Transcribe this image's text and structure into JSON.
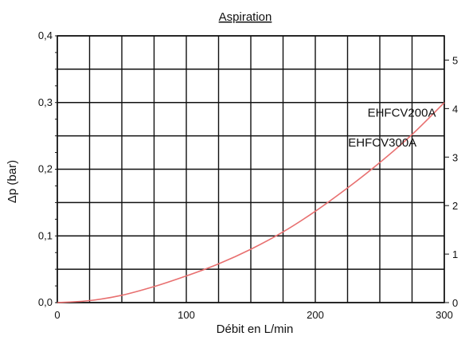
{
  "chart_data": {
    "type": "line",
    "title": "Aspiration",
    "xlabel": "Débit en L/min",
    "ylabel": "Δp (bar)",
    "xlim": [
      0,
      300
    ],
    "ylim": [
      0,
      0.4
    ],
    "y2lim": [
      0,
      5.5
    ],
    "grid": true,
    "x_ticks": [
      0,
      25,
      50,
      75,
      100,
      125,
      150,
      175,
      200,
      225,
      250,
      275,
      300
    ],
    "x_tick_labels": [
      "0",
      "100",
      "200",
      "300"
    ],
    "x_tick_label_values": [
      0,
      100,
      200,
      300
    ],
    "y_ticks": [
      0,
      0.05,
      0.1,
      0.15,
      0.2,
      0.25,
      0.3,
      0.35,
      0.4
    ],
    "y_tick_labels": [
      "0,0",
      "0,1",
      "0,2",
      "0,3",
      "0,4"
    ],
    "y_tick_label_values": [
      0,
      0.1,
      0.2,
      0.3,
      0.4
    ],
    "y2_ticks": [
      0,
      1,
      2,
      3,
      4,
      5
    ],
    "y2_tick_labels": [
      "0",
      "1",
      "2",
      "3",
      "4",
      "5"
    ],
    "colors": {
      "curve": "#e87070",
      "grid": "#111111",
      "background": "#ffffff"
    },
    "series": [
      {
        "x": [
          0,
          25,
          50,
          75,
          100,
          125,
          150,
          175,
          200,
          225,
          250,
          275,
          300
        ],
        "y": [
          0.0,
          0.003,
          0.011,
          0.024,
          0.04,
          0.058,
          0.08,
          0.106,
          0.137,
          0.172,
          0.21,
          0.252,
          0.3
        ]
      }
    ],
    "annotations": [
      {
        "text": "EHFCV200A",
        "x": 267,
        "y": 0.285
      },
      {
        "text": "EHFCV300A",
        "x": 252,
        "y": 0.24
      }
    ]
  }
}
